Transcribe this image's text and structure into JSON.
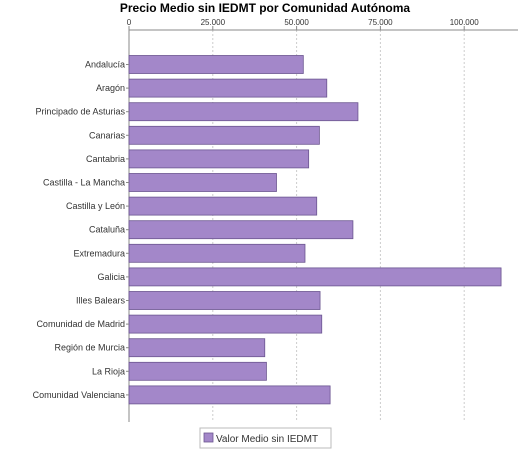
{
  "chart_data": {
    "type": "bar",
    "orientation": "horizontal",
    "title": "Precio Medio sin IEDMT por Comunidad Autónoma",
    "categories": [
      "Andalucía",
      "Aragón",
      "Principado de Asturias",
      "Canarias",
      "Cantabria",
      "Castilla - La Mancha",
      "Castilla y León",
      "Cataluña",
      "Extremadura",
      "Galicia",
      "Illes Balears",
      "Comunidad de Madrid",
      "Región de Murcia",
      "La Rioja",
      "Comunidad Valenciana"
    ],
    "series": [
      {
        "name": "Valor Medio sin IEDMT",
        "color": "#a387c9",
        "values": [
          52000,
          59000,
          68300,
          56800,
          53600,
          44000,
          56000,
          66800,
          52500,
          111000,
          57000,
          57500,
          40500,
          41000,
          60000
        ]
      }
    ],
    "x_ticks": [
      "0",
      "25.000",
      "50.000",
      "75.000",
      "100.000"
    ],
    "x_tick_values": [
      0,
      25000,
      50000,
      75000,
      100000
    ],
    "xlim": [
      0,
      116000
    ],
    "axis_position": "top",
    "grid": true,
    "legend_position": "bottom-center",
    "colors": {
      "bar_fill": "#a387c9",
      "bar_stroke": "#6b5590",
      "grid": "#cccccc",
      "axis": "#888888"
    }
  }
}
